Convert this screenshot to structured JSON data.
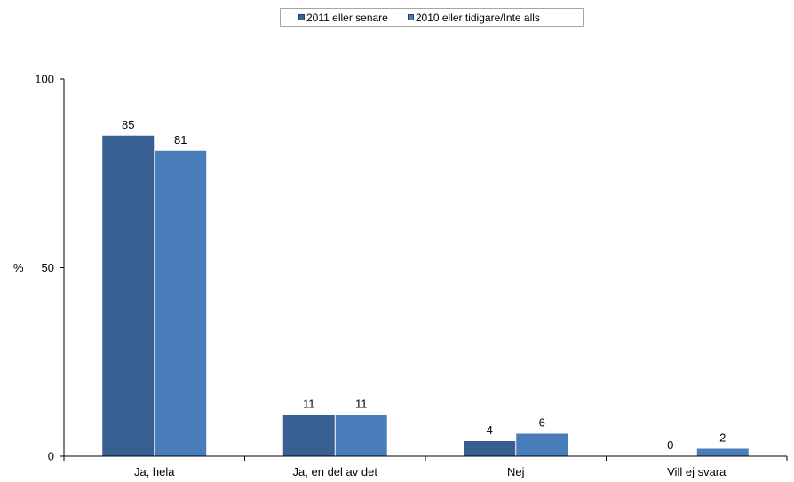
{
  "chart_data": {
    "type": "bar",
    "categories": [
      "Ja, hela",
      "Ja, en del av det",
      "Nej",
      "Vill ej svara"
    ],
    "series": [
      {
        "name": "2011 eller senare",
        "values": [
          85,
          11,
          4,
          0
        ],
        "color": "#375f92"
      },
      {
        "name": "2010 eller tidigare/Inte alls",
        "values": [
          81,
          11,
          6,
          2
        ],
        "color": "#4a7ebb"
      }
    ],
    "title": "",
    "xlabel": "",
    "ylabel": "%",
    "ylim": [
      0,
      100
    ],
    "yticks": [
      0,
      50,
      100
    ],
    "grid": false,
    "legend_position": "top-center",
    "data_labels": true
  }
}
